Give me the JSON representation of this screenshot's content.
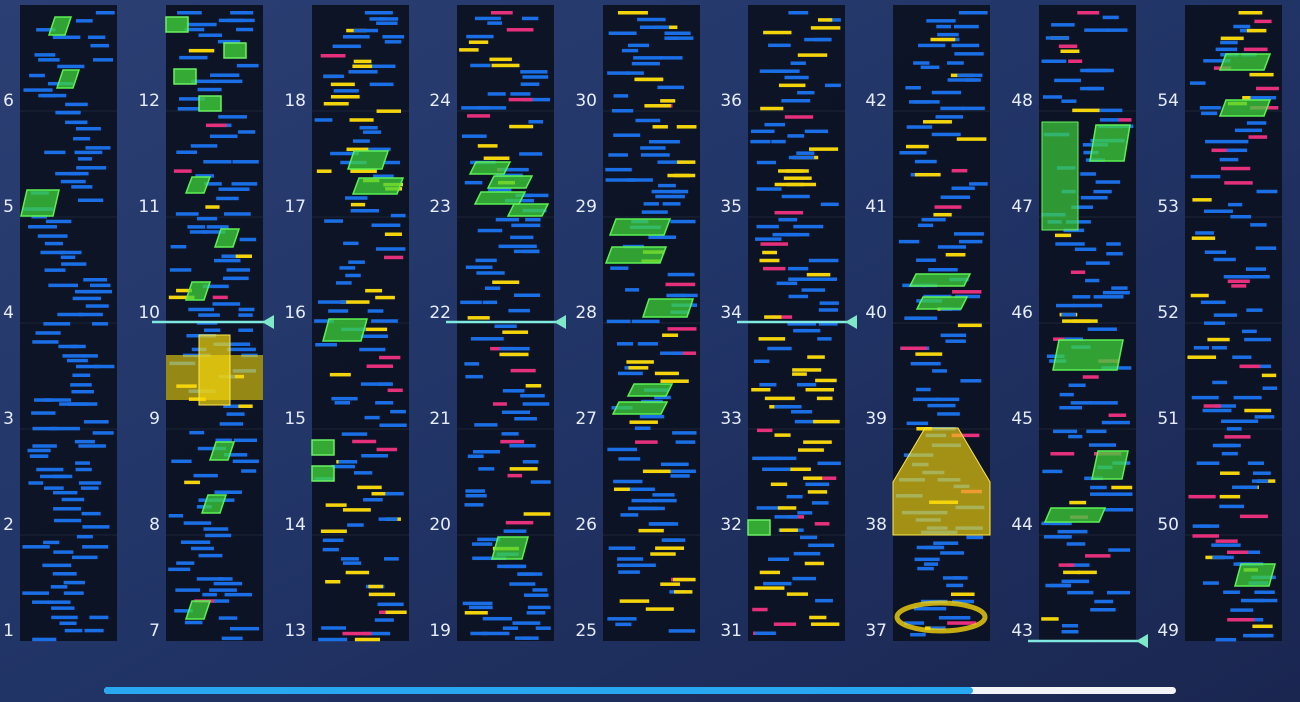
{
  "columns": [
    [
      "1",
      "2",
      "3",
      "4",
      "5",
      "6"
    ],
    [
      "7",
      "8",
      "9",
      "10",
      "11",
      "12"
    ],
    [
      "13",
      "14",
      "15",
      "16",
      "17",
      "18"
    ],
    [
      "19",
      "20",
      "21",
      "22",
      "23",
      "24"
    ],
    [
      "25",
      "26",
      "27",
      "28",
      "29",
      "30"
    ],
    [
      "31",
      "32",
      "33",
      "34",
      "35",
      "36"
    ],
    [
      "37",
      "38",
      "39",
      "40",
      "41",
      "42"
    ],
    [
      "43",
      "44",
      "45",
      "46",
      "47",
      "48"
    ],
    [
      "49",
      "50",
      "51",
      "52",
      "53",
      "54"
    ]
  ]
}
